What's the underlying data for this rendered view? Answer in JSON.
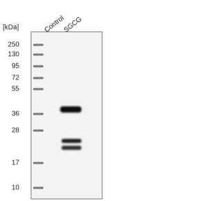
{
  "header": {
    "unit": "[kDa]",
    "lanes": [
      "Control",
      "SGCG"
    ]
  },
  "markers": [
    "250",
    "130",
    "95",
    "72",
    "55",
    "36",
    "28",
    "17",
    "10"
  ]
}
